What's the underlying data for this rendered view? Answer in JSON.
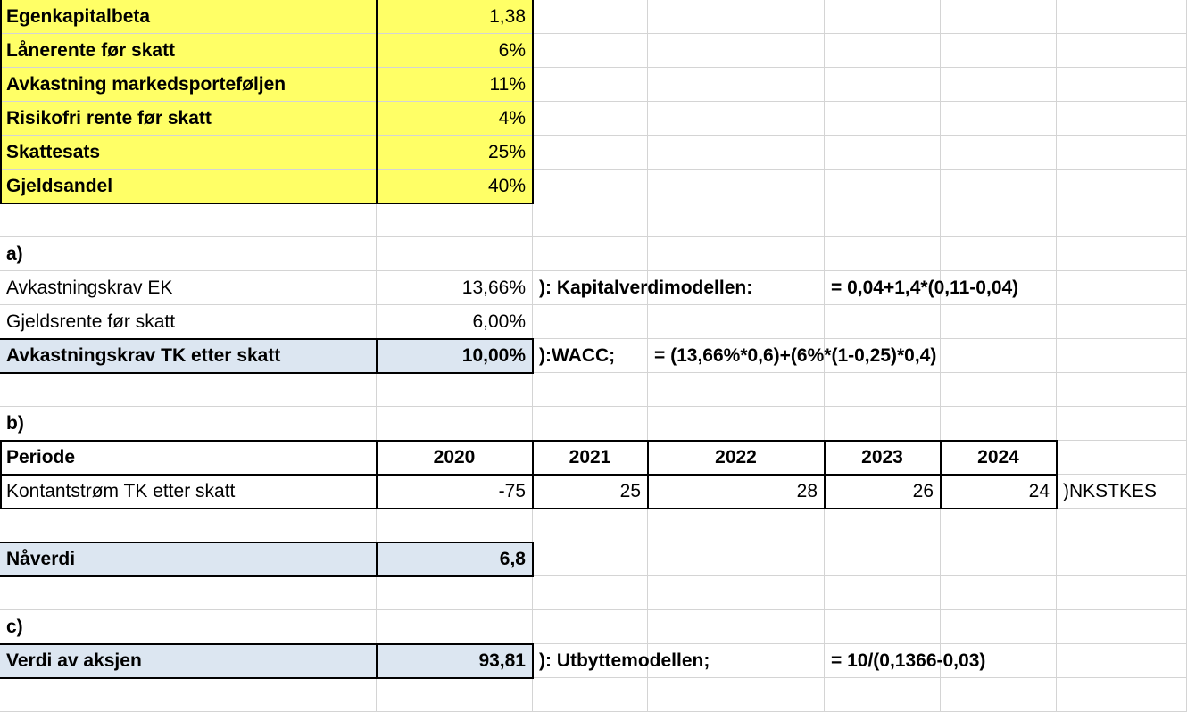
{
  "sheet": {
    "inputs": [
      {
        "label": "Egenkapitalbeta",
        "value": "1,38"
      },
      {
        "label": "Lånerente før skatt",
        "value": "6%"
      },
      {
        "label": "Avkastning markedsporteføljen",
        "value": "11%"
      },
      {
        "label": "Risikofri rente før skatt",
        "value": "4%"
      },
      {
        "label": "Skattesats",
        "value": "25%"
      },
      {
        "label": "Gjeldsandel",
        "value": "40%"
      }
    ],
    "section_a": {
      "heading": "a)",
      "rows": [
        {
          "label": "Avkastningskrav EK",
          "value": "13,66%",
          "note": "): Kapitalverdimodellen:",
          "formula": "= 0,04+1,4*(0,11-0,04)"
        },
        {
          "label": "Gjeldsrente før skatt",
          "value": "6,00%"
        },
        {
          "label": "Avkastningskrav TK etter skatt",
          "value": "10,00%",
          "note": "):WACC;",
          "formula": "= (13,66%*0,6)+(6%*(1-0,25)*0,4)"
        }
      ]
    },
    "section_b": {
      "heading": "b)",
      "period_label": "Periode",
      "years": [
        "2020",
        "2021",
        "2022",
        "2023",
        "2024"
      ],
      "cashflow_label": "Kontantstrøm TK etter skatt",
      "cashflows": [
        "-75",
        "25",
        "28",
        "26",
        "24"
      ],
      "cashflow_note": ")NKSTKES",
      "npv_label": "Nåverdi",
      "npv_value": "6,8"
    },
    "section_c": {
      "heading": "c)",
      "label": "Verdi av aksjen",
      "value": "93,81",
      "note": "): Utbyttemodellen;",
      "formula": "= 10/(0,1366-0,03)"
    }
  },
  "colors": {
    "input_fill": "#ffff66",
    "highlight_fill": "#dce6f1",
    "gridline": "#d4d4d4",
    "border": "#000000"
  }
}
